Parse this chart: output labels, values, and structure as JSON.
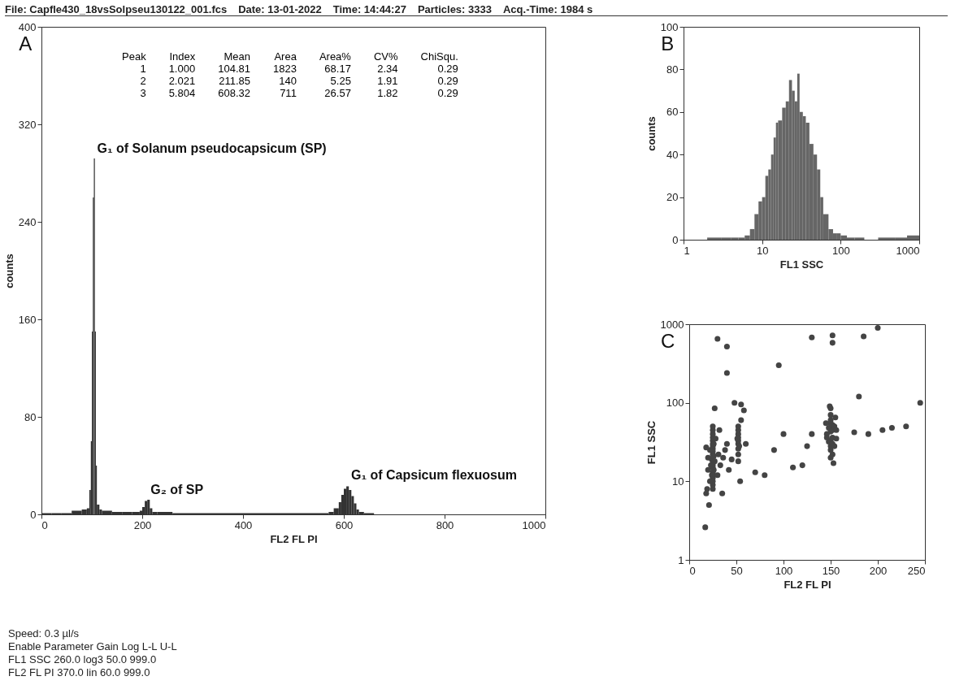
{
  "chart_data": [
    {
      "type": "other",
      "annotations": [
        "File: Capfle430_18vsSolpseu130122_001.fcs",
        "Date: 13-01-2022",
        "Time: 14:44:27",
        "Particles: 3333",
        "Acq.-Time: 1984 s"
      ]
    },
    {
      "type": "histogram",
      "title": "A",
      "xlabel": "FL2 FL PI",
      "ylabel": "counts",
      "color": "#333333",
      "bins": [
        0,
        20,
        40,
        60,
        80,
        90,
        95,
        98,
        100,
        102,
        104,
        106,
        108,
        110,
        115,
        120,
        140,
        160,
        180,
        195,
        200,
        205,
        210,
        215,
        220,
        230,
        260,
        300,
        350,
        400,
        450,
        500,
        550,
        570,
        580,
        590,
        595,
        600,
        605,
        610,
        615,
        620,
        625,
        630,
        640,
        660
      ],
      "values": [
        1,
        1,
        1,
        3,
        4,
        5,
        20,
        60,
        150,
        260,
        292,
        150,
        40,
        8,
        4,
        3,
        2,
        2,
        2,
        3,
        6,
        11,
        12,
        5,
        2,
        2,
        1,
        1,
        1,
        1,
        1,
        1,
        1,
        2,
        5,
        10,
        16,
        21,
        23,
        20,
        15,
        9,
        4,
        2,
        1
      ],
      "xlim": [
        0,
        1000
      ],
      "xticks": [
        0,
        200,
        400,
        600,
        800,
        1000
      ],
      "ylim": [
        0,
        400
      ],
      "yticks": [
        0,
        80,
        160,
        240,
        320,
        400
      ],
      "annotations": [
        "Peak Index Mean Area Area% CV% ChiSqu.",
        "1 1.000 104.81 1823 68.17 2.34 0.29",
        "2 2.021 211.85 140 5.25 1.91 0.29",
        "3 5.804 608.32 711 26.57 1.82 0.29",
        {
          "text": "G₁ of Solanum pseudocapsicum (SP)",
          "x": 104,
          "y": 292
        },
        {
          "text": "G₂ of SP",
          "x": 210,
          "y": 12
        },
        {
          "text": "G₁ of Capsicum flexuosum",
          "x": 608,
          "y": 24
        }
      ]
    },
    {
      "type": "histogram",
      "title": "B",
      "xlabel": "FL1 SSC",
      "ylabel": "counts",
      "color": "#666666",
      "log": "x",
      "bins": [
        2,
        3,
        4,
        5,
        6,
        7,
        8,
        9,
        10,
        11,
        12,
        13,
        14,
        15,
        16,
        18,
        20,
        22,
        24,
        26,
        28,
        30,
        33,
        36,
        40,
        45,
        50,
        55,
        60,
        70,
        80,
        90,
        100,
        120,
        150,
        200,
        300,
        500,
        700,
        1000
      ],
      "values": [
        1,
        1,
        1,
        1,
        2,
        5,
        12,
        18,
        20,
        30,
        33,
        40,
        48,
        55,
        56,
        62,
        65,
        75,
        70,
        65,
        78,
        60,
        58,
        55,
        45,
        40,
        33,
        20,
        12,
        5,
        3,
        3,
        2,
        1,
        1,
        0,
        1,
        1,
        2
      ],
      "xlim": [
        1,
        1000
      ],
      "xticks": [
        1,
        10,
        100,
        1000
      ],
      "ylim": [
        0,
        100
      ],
      "yticks": [
        0,
        20,
        40,
        60,
        80,
        100
      ]
    },
    {
      "type": "scatter",
      "title": "C",
      "xlabel": "FL2 FL PI",
      "ylabel": "FL1 SSC",
      "color": "#444444",
      "log": "y",
      "marker": "circle",
      "x": [
        25,
        25,
        25,
        25,
        25,
        25,
        25,
        25,
        25,
        25,
        25,
        25,
        25,
        25,
        25,
        25,
        25,
        25,
        25,
        24,
        24,
        26,
        26,
        26,
        23,
        27,
        22,
        22,
        20,
        19,
        20,
        18,
        28,
        30,
        31,
        33,
        35,
        38,
        40,
        42,
        45,
        18,
        21,
        17,
        32,
        36,
        27,
        52,
        52,
        52,
        52,
        52,
        52,
        52,
        52,
        52,
        53,
        51,
        55,
        55,
        58,
        54,
        60,
        48,
        150,
        150,
        150,
        150,
        150,
        150,
        150,
        150,
        150,
        148,
        148,
        152,
        152,
        152,
        152,
        152,
        154,
        154,
        146,
        146,
        156,
        156,
        153,
        145,
        155,
        149,
        70,
        80,
        90,
        100,
        110,
        120,
        125,
        130,
        175,
        190,
        205,
        215,
        230,
        180,
        40,
        30,
        40,
        130,
        152,
        152,
        185,
        95,
        200,
        245
      ],
      "values": [
        8,
        9,
        10,
        11,
        12,
        13,
        15,
        16,
        17,
        22,
        24,
        26,
        28,
        30,
        33,
        36,
        40,
        45,
        50,
        12,
        19,
        14,
        21,
        30,
        16,
        18,
        10,
        25,
        20,
        8,
        14,
        27,
        35,
        12,
        22,
        16,
        7,
        25,
        30,
        14,
        19,
        7,
        5,
        2.6,
        45,
        20,
        85,
        18,
        22,
        26,
        30,
        33,
        36,
        40,
        45,
        50,
        28,
        35,
        60,
        95,
        80,
        10,
        30,
        100,
        20,
        25,
        28,
        33,
        43,
        55,
        60,
        70,
        85,
        32,
        48,
        22,
        30,
        36,
        45,
        52,
        28,
        50,
        40,
        36,
        35,
        45,
        17,
        55,
        65,
        90,
        13,
        12,
        25,
        40,
        15,
        16,
        28,
        40,
        42,
        40,
        45,
        48,
        50,
        120,
        240,
        650,
        520,
        680,
        720,
        580,
        700,
        300,
        900,
        100
      ],
      "xlim": [
        0,
        250
      ],
      "xticks": [
        0,
        50,
        100,
        150,
        200,
        250
      ],
      "ylim": [
        1,
        1000
      ],
      "yticks": [
        1,
        10,
        100,
        1000
      ]
    },
    {
      "type": "other",
      "annotations": [
        "Speed: 0.3 µl/s",
        "Enable Parameter Gain Log L-L U-L",
        "FL1 SSC 260.0 log3 50.0 999.0",
        "FL2 FL PI 370.0 lin 60.0 999.0"
      ]
    }
  ]
}
